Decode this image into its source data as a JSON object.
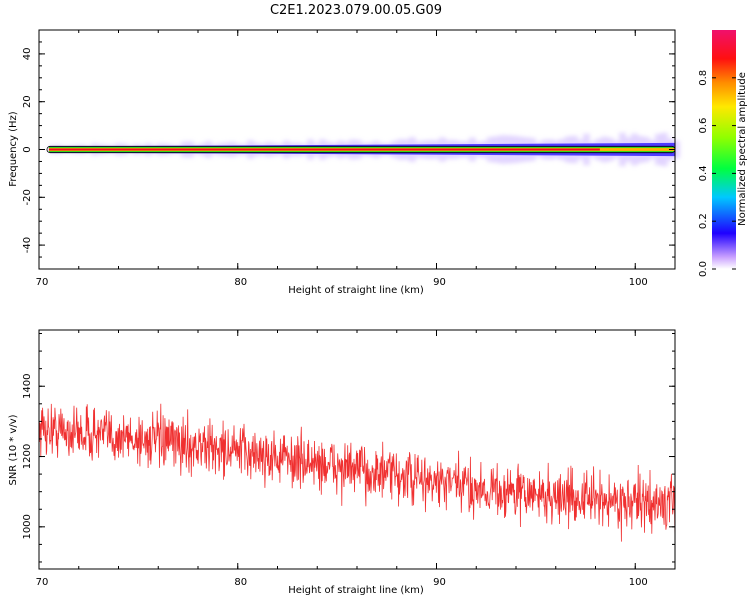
{
  "title": "C2E1.2023.079.00.05.G09",
  "chart_data": [
    {
      "type": "heatmap",
      "xlabel": "Height of straight line (km)",
      "ylabel": "Frequency (Hz)",
      "xlim": [
        70,
        102
      ],
      "ylim": [
        -50,
        50
      ],
      "xticks": [
        "70",
        "80",
        "90",
        "100"
      ],
      "yticks": [
        "-40",
        "-20",
        "0",
        "20",
        "40"
      ],
      "colorbar": {
        "label": "Normalized spectral amplitude",
        "range": [
          0,
          1
        ],
        "ticks": [
          "0.0",
          "0.2",
          "0.4",
          "0.6",
          "0.8"
        ]
      },
      "signal_band": {
        "center_hz": 0,
        "x_start": 70.5,
        "x_end": 102,
        "spread_hz_start": 1.5,
        "spread_hz_end": 5
      },
      "grid": false,
      "colors": {
        "peak": "#e8101e",
        "high": "#ffb000",
        "mid": "#21e015",
        "low": "#3f2bff",
        "faint": "#cdb6ff"
      }
    },
    {
      "type": "line",
      "xlabel": "Height of straight line (km)",
      "ylabel": "SNR (10 * v/v)",
      "xlim": [
        70,
        102
      ],
      "ylim": [
        880,
        1560
      ],
      "xticks": [
        "70",
        "80",
        "90",
        "100"
      ],
      "yticks": [
        "1000",
        "1200",
        "1400"
      ],
      "trend": {
        "x": [
          70,
          75,
          80,
          85,
          90,
          95,
          102
        ],
        "y": [
          1280,
          1250,
          1215,
          1170,
          1125,
          1090,
          1060
        ]
      },
      "noise_amplitude": 70,
      "series_color": "#f03030",
      "grid": false
    }
  ]
}
